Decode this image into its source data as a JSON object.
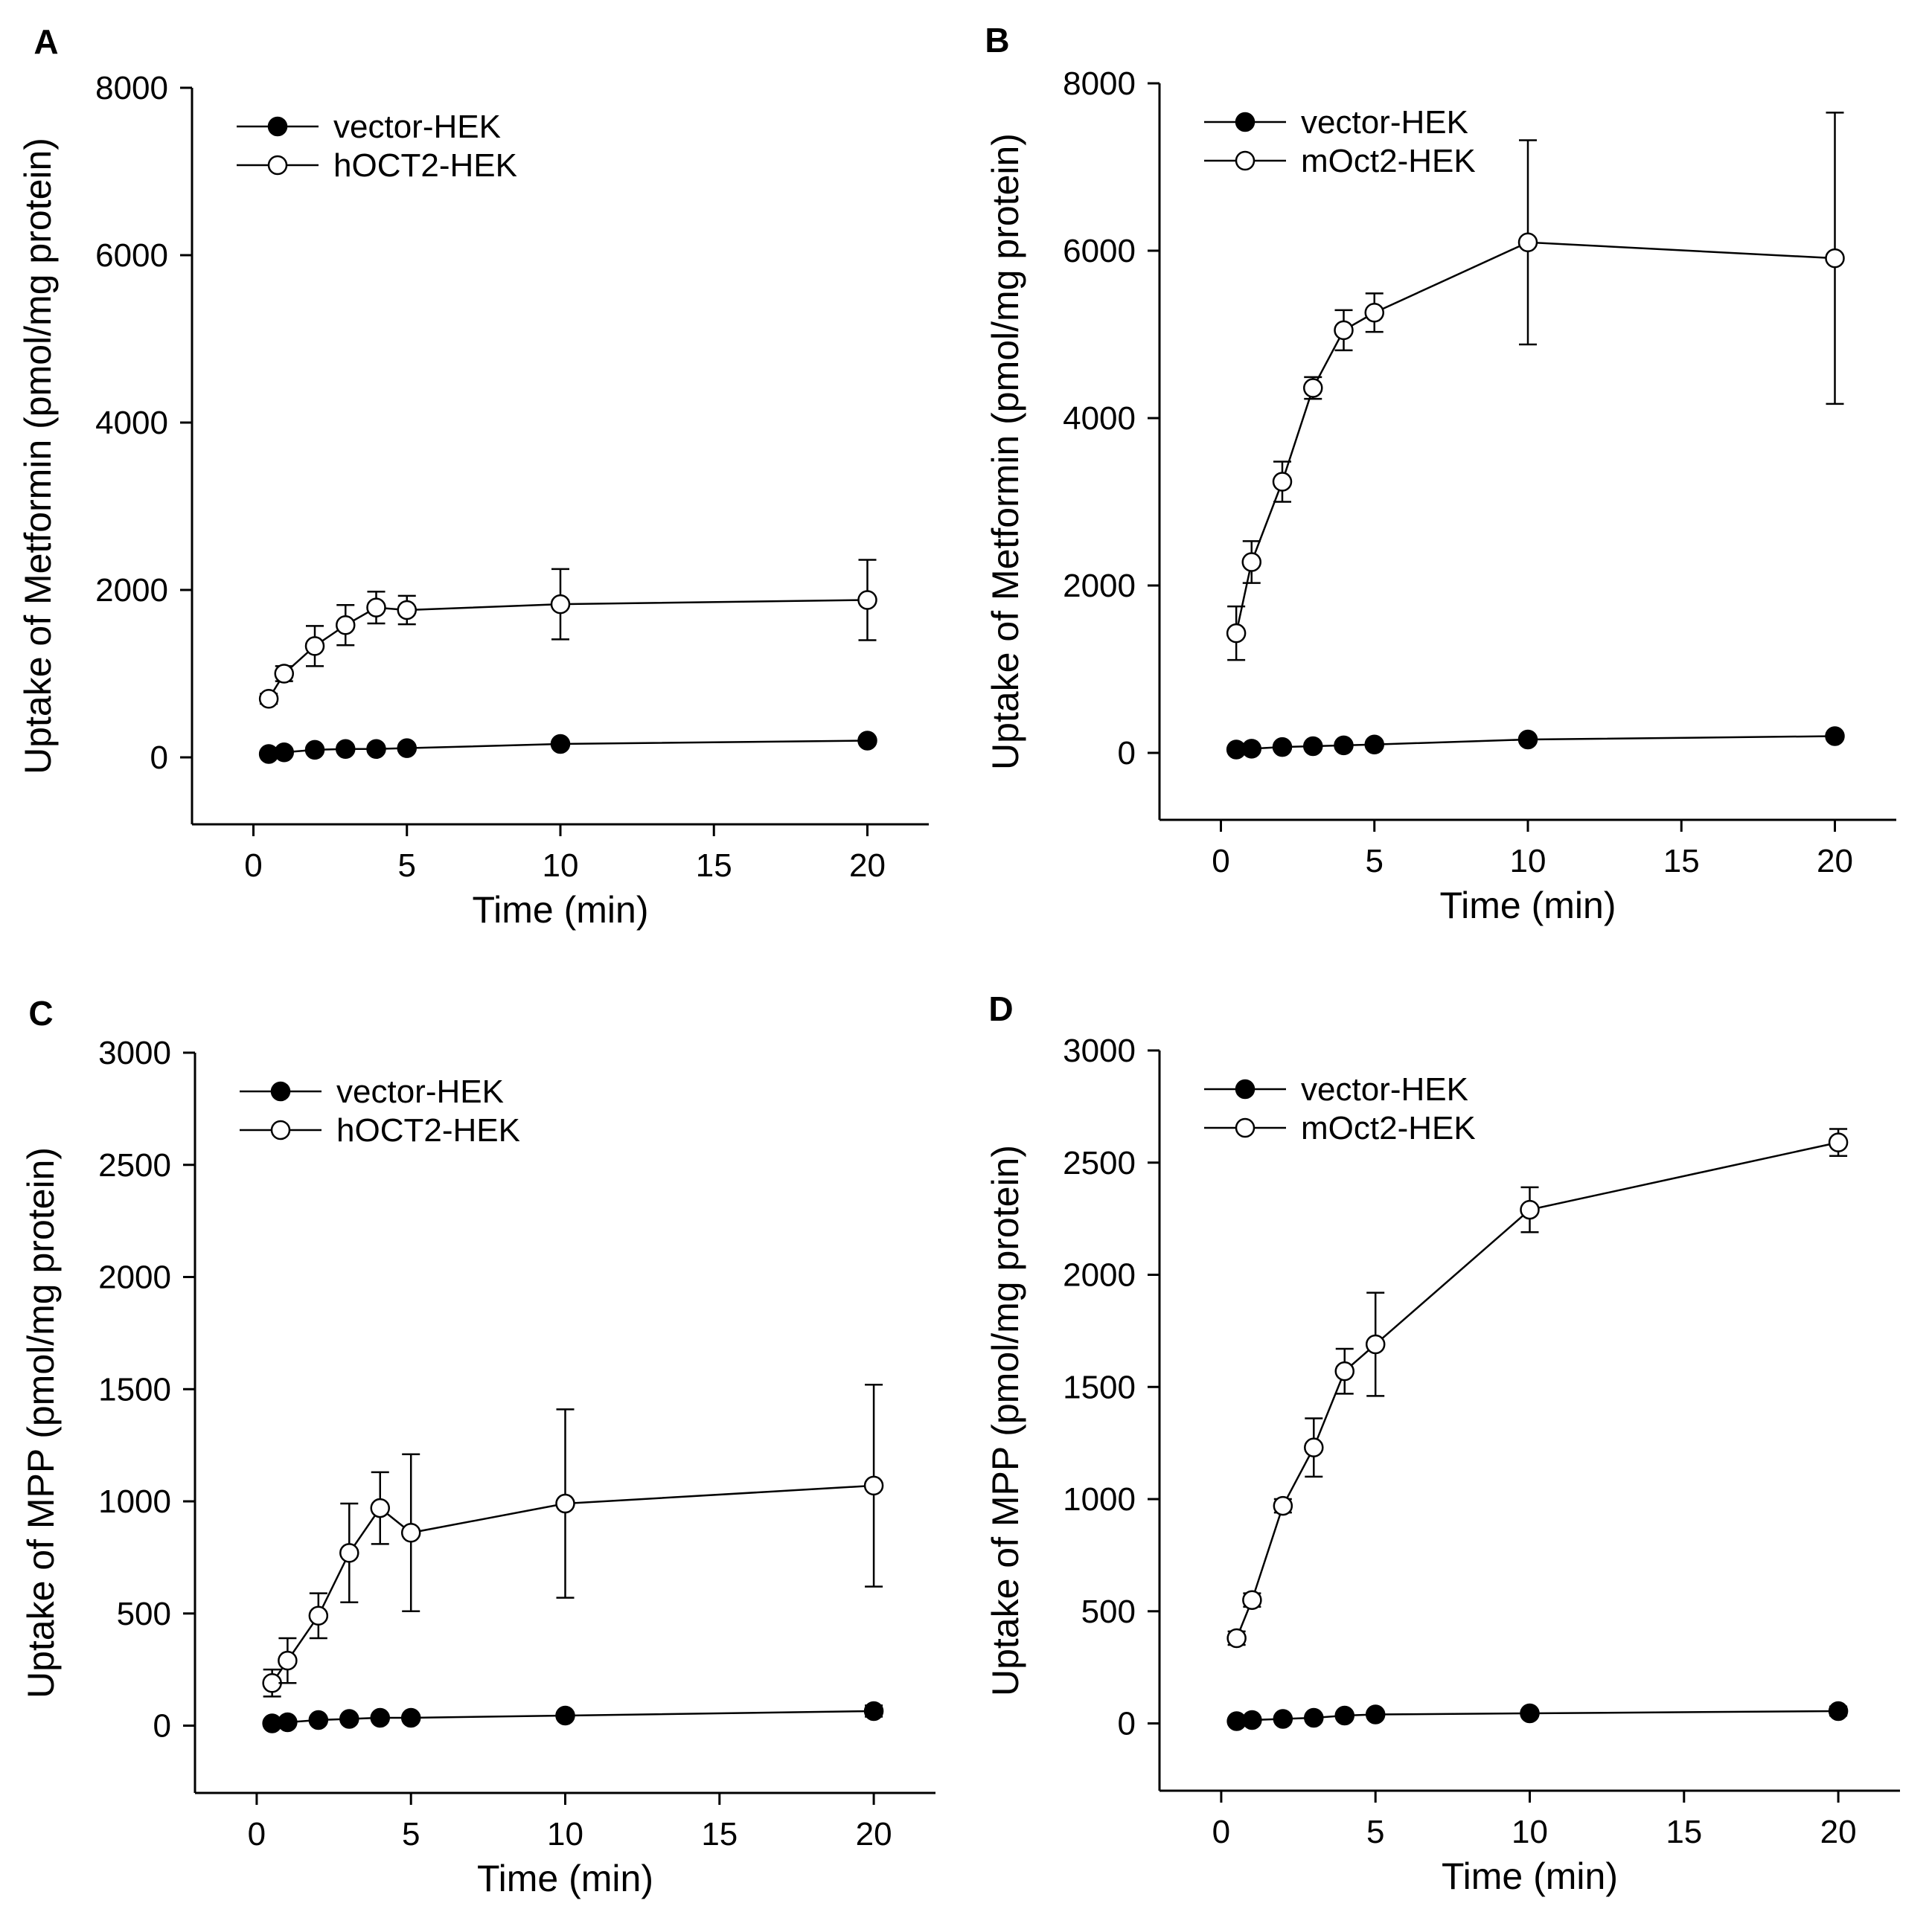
{
  "chart_data": [
    {
      "panel": "A",
      "type": "line",
      "xlabel": "Time (min)",
      "ylabel": "Uptake of Metformin (pmol/mg protein)",
      "xlim": [
        -2,
        22
      ],
      "ylim": [
        -800,
        8000
      ],
      "xticks": [
        0,
        5,
        10,
        15,
        20
      ],
      "yticks": [
        0,
        2000,
        4000,
        6000,
        8000
      ],
      "x": [
        0.5,
        1,
        2,
        3,
        4,
        5,
        10,
        20
      ],
      "series": [
        {
          "name": "vector-HEK",
          "marker": "filled",
          "values": [
            40,
            60,
            90,
            100,
            100,
            110,
            160,
            200
          ],
          "errors": [
            15,
            15,
            20,
            20,
            20,
            20,
            30,
            40
          ]
        },
        {
          "name": "hOCT2-HEK",
          "marker": "open",
          "values": [
            700,
            1000,
            1330,
            1580,
            1790,
            1760,
            1830,
            1880
          ],
          "errors": [
            60,
            90,
            240,
            240,
            190,
            170,
            420,
            480
          ]
        }
      ]
    },
    {
      "panel": "B",
      "type": "line",
      "xlabel": "Time (min)",
      "ylabel": "Uptake of Metformin (pmol/mg protein)",
      "xlim": [
        -2,
        22
      ],
      "ylim": [
        -800,
        8000
      ],
      "xticks": [
        0,
        5,
        10,
        15,
        20
      ],
      "yticks": [
        0,
        2000,
        4000,
        6000,
        8000
      ],
      "x": [
        0.5,
        1,
        2,
        3,
        4,
        5,
        10,
        20
      ],
      "series": [
        {
          "name": "vector-HEK",
          "marker": "filled",
          "values": [
            40,
            50,
            70,
            80,
            90,
            100,
            160,
            200
          ],
          "errors": [
            15,
            15,
            20,
            20,
            20,
            20,
            30,
            40
          ]
        },
        {
          "name": "mOct2-HEK",
          "marker": "open",
          "values": [
            1430,
            2280,
            3240,
            4360,
            5050,
            5260,
            6100,
            5910
          ],
          "errors": [
            320,
            250,
            240,
            130,
            240,
            230,
            1220,
            1740
          ]
        }
      ]
    },
    {
      "panel": "C",
      "type": "line",
      "xlabel": "Time (min)",
      "ylabel": "Uptake of MPP (pmol/mg protein)",
      "xlim": [
        -2,
        22
      ],
      "ylim": [
        -300,
        3000
      ],
      "xticks": [
        0,
        5,
        10,
        15,
        20
      ],
      "yticks": [
        0,
        500,
        1000,
        1500,
        2000,
        2500,
        3000
      ],
      "x": [
        0.5,
        1,
        2,
        3,
        4,
        5,
        10,
        20
      ],
      "series": [
        {
          "name": "vector-HEK",
          "marker": "filled",
          "values": [
            10,
            15,
            25,
            30,
            35,
            35,
            45,
            65
          ],
          "errors": [
            5,
            5,
            8,
            8,
            10,
            10,
            15,
            25
          ]
        },
        {
          "name": "hOCT2-HEK",
          "marker": "open",
          "values": [
            190,
            290,
            490,
            770,
            970,
            860,
            990,
            1070
          ],
          "errors": [
            60,
            100,
            100,
            220,
            160,
            350,
            420,
            450
          ]
        }
      ]
    },
    {
      "panel": "D",
      "type": "line",
      "xlabel": "Time (min)",
      "ylabel": "Uptake of MPP (pmol/mg protein)",
      "xlim": [
        -2,
        22
      ],
      "ylim": [
        -300,
        3000
      ],
      "xticks": [
        0,
        5,
        10,
        15,
        20
      ],
      "yticks": [
        0,
        500,
        1000,
        1500,
        2000,
        2500,
        3000
      ],
      "x": [
        0.5,
        1,
        2,
        3,
        4,
        5,
        10,
        20
      ],
      "series": [
        {
          "name": "vector-HEK",
          "marker": "filled",
          "values": [
            10,
            15,
            20,
            25,
            35,
            40,
            45,
            55
          ],
          "errors": [
            5,
            5,
            8,
            8,
            10,
            10,
            15,
            20
          ]
        },
        {
          "name": "mOct2-HEK",
          "marker": "open",
          "values": [
            380,
            550,
            970,
            1230,
            1570,
            1690,
            2290,
            2590
          ],
          "errors": [
            30,
            30,
            30,
            130,
            100,
            230,
            100,
            60
          ]
        }
      ]
    }
  ]
}
